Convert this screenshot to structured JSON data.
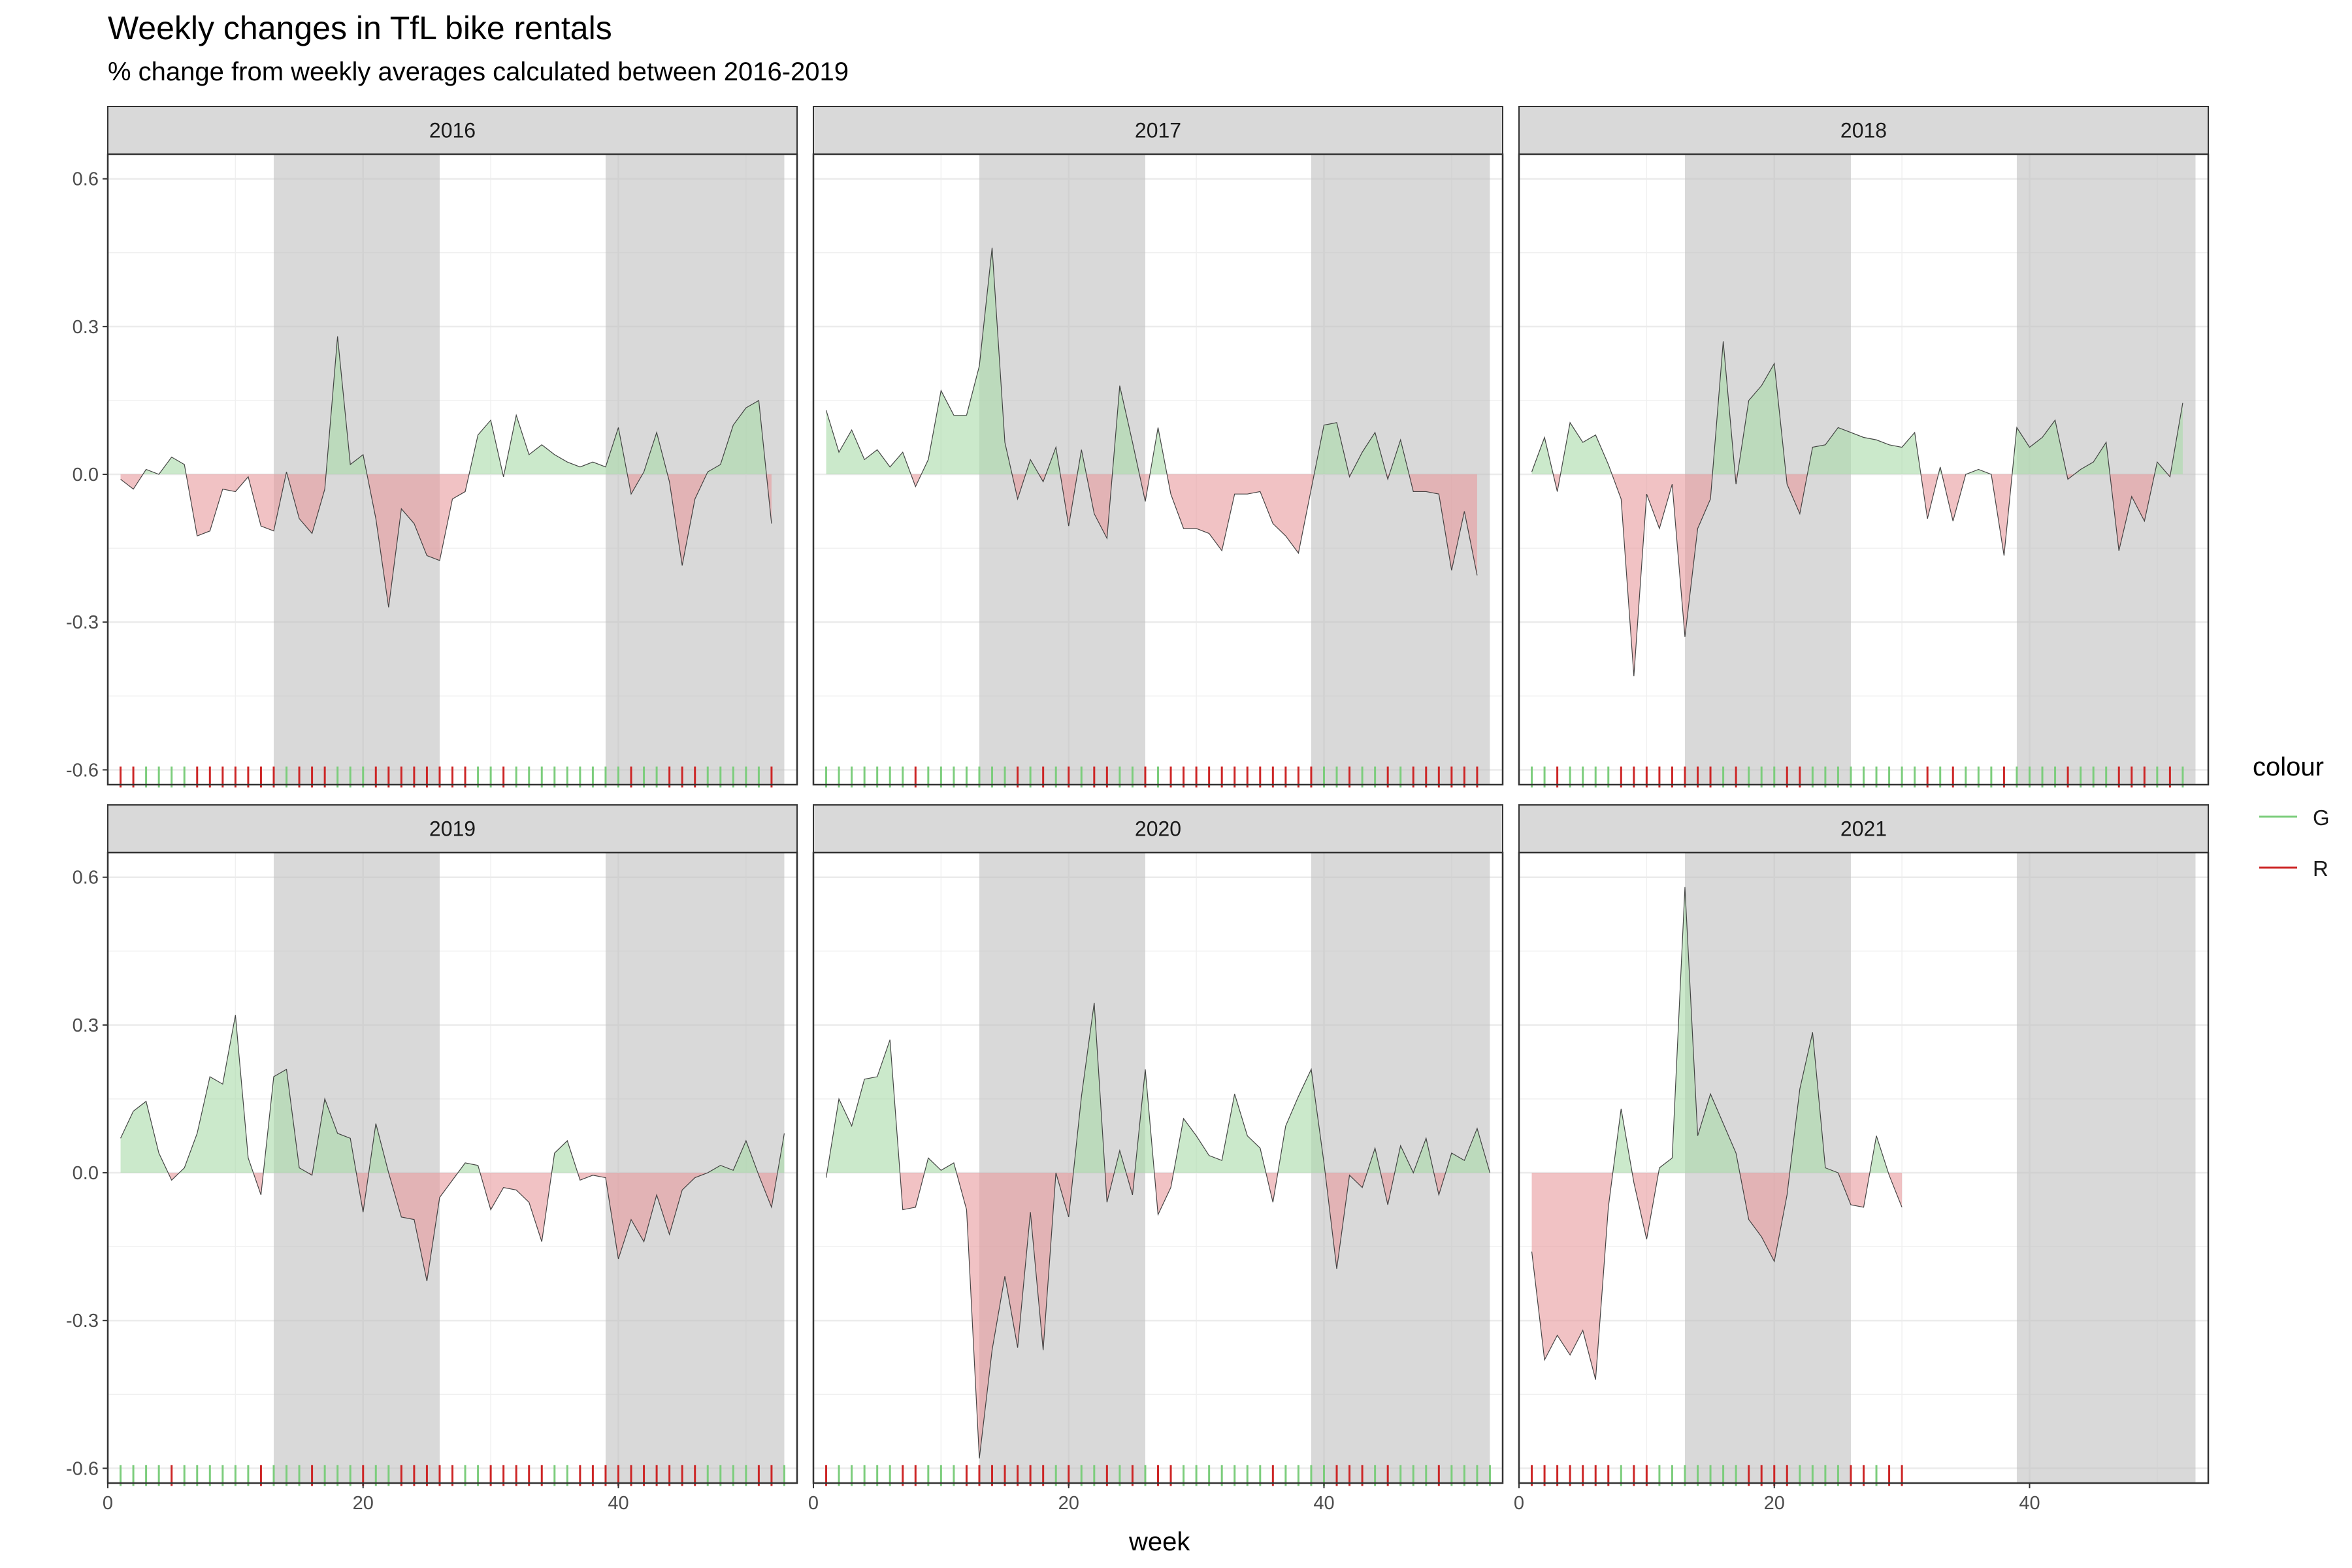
{
  "chart_data": {
    "type": "area",
    "title": "Weekly changes in TfL bike rentals",
    "subtitle": "% change from weekly averages calculated between 2016-2019",
    "xlabel": "week",
    "ylabel": "",
    "xlim": [
      0,
      54
    ],
    "ylim": [
      -0.63,
      0.65
    ],
    "x_ticks": [
      0,
      20,
      40
    ],
    "y_ticks": [
      0.6,
      0.3,
      0.0,
      -0.3,
      -0.6
    ],
    "y_tick_labels": [
      "0.6",
      "0.3",
      "0.0",
      "-0.3",
      "-0.6"
    ],
    "grid": true,
    "legend": {
      "title": "colour",
      "position": "right",
      "entries": [
        {
          "label": "G",
          "color": "#7ccd7c"
        },
        {
          "label": "R",
          "color": "#cd2626"
        }
      ]
    },
    "shaded_week_ranges": [
      [
        13,
        26
      ],
      [
        39,
        53
      ]
    ],
    "colors": {
      "positive_fill": "#a8dba8",
      "negative_fill": "#e8999d",
      "rug_positive": "#7ccd7c",
      "rug_negative": "#cd2626",
      "line": "#333333",
      "shade": "#bfbfbf"
    },
    "panels": [
      {
        "label": "2016",
        "values": [
          -0.01,
          -0.03,
          0.01,
          0.0,
          0.035,
          0.02,
          -0.125,
          -0.115,
          -0.03,
          -0.035,
          -0.005,
          -0.105,
          -0.115,
          0.005,
          -0.09,
          -0.12,
          -0.03,
          0.28,
          0.02,
          0.04,
          -0.09,
          -0.27,
          -0.07,
          -0.1,
          -0.165,
          -0.175,
          -0.05,
          -0.035,
          0.08,
          0.11,
          -0.005,
          0.12,
          0.04,
          0.06,
          0.04,
          0.025,
          0.015,
          0.025,
          0.015,
          0.095,
          -0.04,
          0.005,
          0.085,
          -0.015,
          -0.185,
          -0.05,
          0.005,
          0.02,
          0.1,
          0.135,
          0.15,
          -0.1
        ]
      },
      {
        "label": "2017",
        "values": [
          0.13,
          0.045,
          0.09,
          0.03,
          0.05,
          0.015,
          0.045,
          -0.025,
          0.03,
          0.17,
          0.12,
          0.12,
          0.22,
          0.46,
          0.065,
          -0.05,
          0.03,
          -0.015,
          0.055,
          -0.105,
          0.05,
          -0.08,
          -0.13,
          0.18,
          0.065,
          -0.055,
          0.095,
          -0.04,
          -0.11,
          -0.11,
          -0.12,
          -0.155,
          -0.04,
          -0.04,
          -0.035,
          -0.1,
          -0.125,
          -0.16,
          -0.03,
          0.1,
          0.105,
          -0.005,
          0.045,
          0.085,
          -0.01,
          0.07,
          -0.035,
          -0.035,
          -0.04,
          -0.195,
          -0.075,
          -0.205
        ]
      },
      {
        "label": "2018",
        "values": [
          0.005,
          0.075,
          -0.035,
          0.105,
          0.065,
          0.08,
          0.02,
          -0.05,
          -0.41,
          -0.04,
          -0.11,
          -0.02,
          -0.33,
          -0.11,
          -0.05,
          0.27,
          -0.02,
          0.15,
          0.18,
          0.225,
          -0.02,
          -0.08,
          0.055,
          0.06,
          0.095,
          0.085,
          0.075,
          0.07,
          0.06,
          0.055,
          0.085,
          -0.09,
          0.015,
          -0.095,
          0.0,
          0.01,
          0.0,
          -0.165,
          0.095,
          0.055,
          0.075,
          0.11,
          -0.01,
          0.01,
          0.025,
          0.065,
          -0.155,
          -0.045,
          -0.095,
          0.025,
          -0.005,
          0.145
        ]
      },
      {
        "label": "2019",
        "values": [
          0.07,
          0.125,
          0.145,
          0.04,
          -0.015,
          0.01,
          0.08,
          0.195,
          0.18,
          0.32,
          0.03,
          -0.045,
          0.195,
          0.21,
          0.01,
          -0.005,
          0.15,
          0.08,
          0.07,
          -0.08,
          0.1,
          0.0,
          -0.09,
          -0.095,
          -0.22,
          -0.05,
          -0.015,
          0.02,
          0.015,
          -0.075,
          -0.03,
          -0.035,
          -0.06,
          -0.14,
          0.04,
          0.065,
          -0.015,
          -0.005,
          -0.01,
          -0.175,
          -0.095,
          -0.14,
          -0.045,
          -0.125,
          -0.035,
          -0.01,
          0.0,
          0.015,
          0.005,
          0.065,
          -0.005,
          -0.07,
          0.08
        ]
      },
      {
        "label": "2020",
        "values": [
          -0.01,
          0.15,
          0.095,
          0.19,
          0.195,
          0.27,
          -0.075,
          -0.07,
          0.03,
          0.005,
          0.02,
          -0.075,
          -0.58,
          -0.36,
          -0.21,
          -0.355,
          -0.08,
          -0.36,
          0.0,
          -0.09,
          0.155,
          0.345,
          -0.06,
          0.045,
          -0.045,
          0.21,
          -0.085,
          -0.03,
          0.11,
          0.075,
          0.035,
          0.025,
          0.16,
          0.075,
          0.05,
          -0.06,
          0.095,
          0.155,
          0.21,
          0.02,
          -0.195,
          -0.005,
          -0.03,
          0.05,
          -0.065,
          0.055,
          0.0,
          0.07,
          -0.045,
          0.04,
          0.025,
          0.09,
          0.0
        ]
      },
      {
        "label": "2021",
        "values": [
          -0.16,
          -0.38,
          -0.33,
          -0.37,
          -0.32,
          -0.42,
          -0.07,
          0.13,
          -0.02,
          -0.135,
          0.01,
          0.03,
          0.58,
          0.075,
          0.16,
          0.1,
          0.04,
          -0.095,
          -0.13,
          -0.18,
          -0.045,
          0.17,
          0.285,
          0.01,
          0.0,
          -0.065,
          -0.07,
          0.075,
          -0.005,
          -0.07
        ]
      }
    ]
  }
}
